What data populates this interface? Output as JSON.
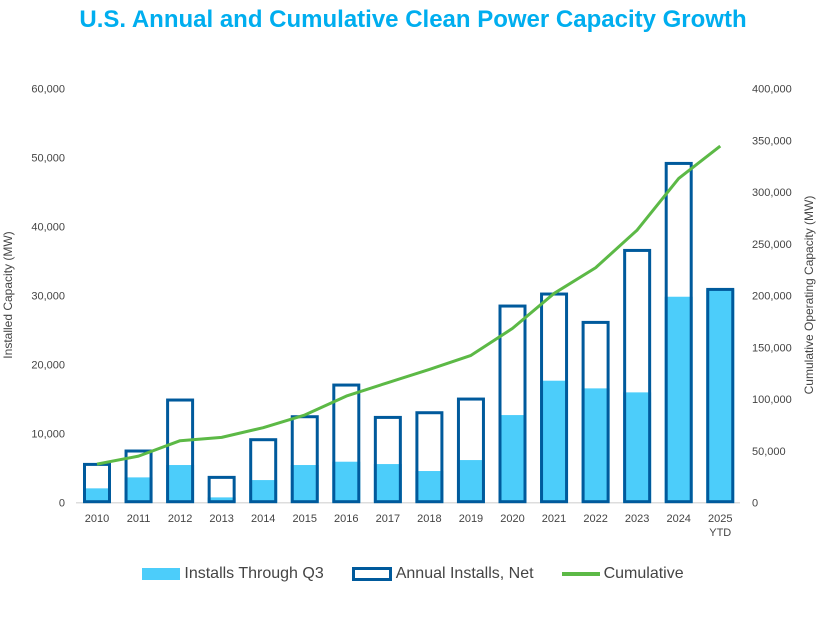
{
  "chart_data": {
    "type": "bar",
    "title": "U.S. Annual and Cumulative Clean Power Capacity Growth",
    "categories": [
      "2010",
      "2011",
      "2012",
      "2013",
      "2014",
      "2015",
      "2016",
      "2017",
      "2018",
      "2019",
      "2020",
      "2021",
      "2022",
      "2023",
      "2024",
      "2025 YTD"
    ],
    "ylabel": "Installed Capacity (MW)",
    "y2label": "Cumulative Operating Capacity (MW)",
    "ylim": [
      0,
      60000
    ],
    "y2lim": [
      0,
      400000
    ],
    "yticks": [
      "0",
      "10,000",
      "20,000",
      "30,000",
      "40,000",
      "50,000",
      "60,000"
    ],
    "y2ticks": [
      "0",
      "50,000",
      "100,000",
      "150,000",
      "200,000",
      "250,000",
      "300,000",
      "350,000",
      "400,000"
    ],
    "grid": false,
    "legend_position": "bottom",
    "series": [
      {
        "name": "Installs Through Q3",
        "type": "bar-filled",
        "axis": "left",
        "color": "#4ccdfa",
        "values": [
          2080,
          3670,
          5460,
          770,
          3280,
          5460,
          5940,
          5600,
          4590,
          6180,
          12700,
          17680,
          16570,
          15990,
          29850,
          30910
        ]
      },
      {
        "name": "Annual Installs, Net",
        "type": "bar-outline",
        "axis": "left",
        "color": "#005a9c",
        "values": [
          5550,
          7490,
          14880,
          3670,
          9130,
          12460,
          17050,
          12360,
          13040,
          15020,
          28500,
          30240,
          26130,
          36560,
          49170,
          30910
        ]
      },
      {
        "name": "Cumulative",
        "type": "line",
        "axis": "right",
        "color": "#5cb946",
        "values": [
          37300,
          45000,
          59900,
          63100,
          72500,
          84700,
          103000,
          116000,
          128800,
          142300,
          168400,
          202200,
          227000,
          263400,
          313300,
          344600
        ]
      }
    ]
  }
}
